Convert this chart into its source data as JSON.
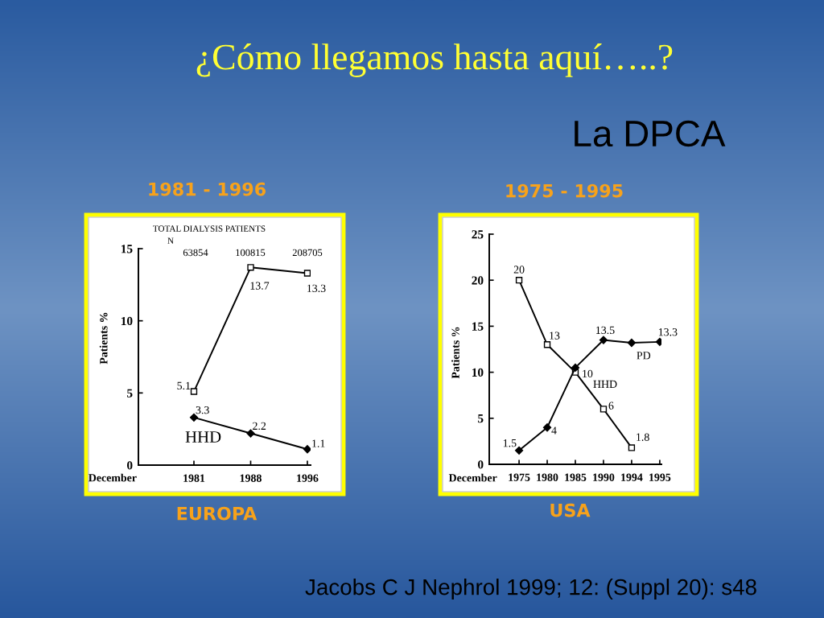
{
  "chart_data": [
    {
      "type": "line",
      "title": "1981 - 1996",
      "xlabel": "December",
      "ylabel": "Patients %",
      "categories": [
        "1981",
        "1988",
        "1996"
      ],
      "series": [
        {
          "color": "#000000",
          "marker": "square",
          "values": [
            5.1,
            13.7,
            13.3
          ]
        },
        {
          "name": "HHD",
          "color": "#000000",
          "marker": "diamond",
          "values": [
            3.3,
            2.2,
            1.1
          ]
        }
      ],
      "data_labels": true,
      "ylim": [
        0,
        15
      ],
      "yticks": [
        0,
        5,
        10,
        15
      ],
      "annotations": [
        "¿Cómo llegamos hasta aquí…..?",
        "La DPCA",
        "TOTAL DIALYSIS PATIENTS",
        "N",
        "63854",
        "100815",
        "208705",
        "EUROPA"
      ]
    },
    {
      "type": "line",
      "title": "1975 - 1995",
      "xlabel": "December",
      "ylabel": "Patients %",
      "categories": [
        "1975",
        "1980",
        "1985",
        "1990",
        "1994",
        "1995"
      ],
      "series": [
        {
          "name": "HHD",
          "color": "#000000",
          "marker": "square",
          "values": [
            20,
            13,
            10,
            6,
            1.8,
            null
          ],
          "value_labels": [
            "20",
            "13",
            "10",
            "6",
            "1.8",
            null
          ]
        },
        {
          "name": "PD",
          "color": "#000000",
          "marker": "diamond",
          "values": [
            1.5,
            4,
            10.5,
            13.5,
            13.2,
            13.3
          ],
          "value_labels": [
            "1.5",
            "4",
            null,
            "13.5",
            null,
            "13.3"
          ]
        }
      ],
      "ylim": [
        0,
        25
      ],
      "yticks": [
        0,
        5,
        10,
        15,
        20,
        25
      ],
      "annotations": [
        "USA",
        "Jacobs C J Nephrol 1999; 12: (Suppl 20): s48"
      ]
    }
  ]
}
